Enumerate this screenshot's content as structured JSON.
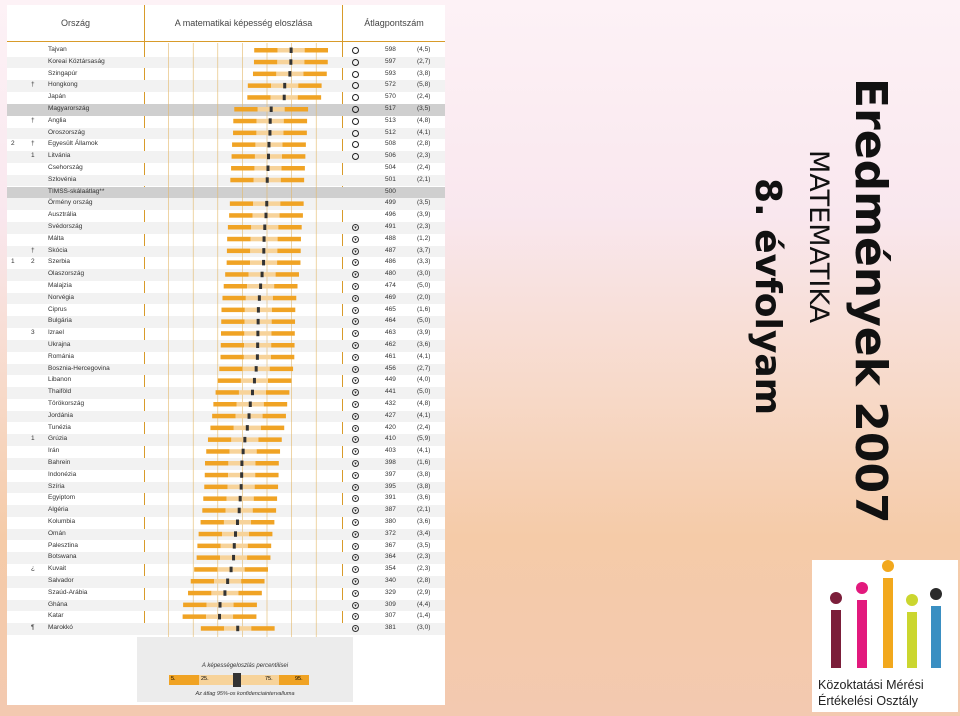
{
  "slide": {
    "title": "Eredmények 2007",
    "subtitle": "MATEMATIKA",
    "grade": "8. évfolyam"
  },
  "figure": {
    "col_country": "Ország",
    "col_distribution": "A matematikai képesség eloszlása",
    "col_average": "Átlagpontszám",
    "axis_ticks": [
      "0",
      "100",
      "200",
      "300",
      "400",
      "500",
      "600",
      "700",
      "800"
    ],
    "legend_title": "A képességeloszlás percentilisei",
    "legend_p5": "5.",
    "legend_p25": "25.",
    "legend_p75": "75.",
    "legend_p95": "95.",
    "legend_ci": "Az átlag 95%-os konfidenciaintervalluma",
    "rows": [
      {
        "m1": "",
        "m2": "",
        "country": "Tajvan",
        "sym": "up",
        "score": "598",
        "se": "(4,5)",
        "mean": 598
      },
      {
        "m1": "",
        "m2": "",
        "country": "Koreai Köztársaság",
        "sym": "up",
        "score": "597",
        "se": "(2,7)",
        "mean": 597
      },
      {
        "m1": "",
        "m2": "",
        "country": "Szingapúr",
        "sym": "up",
        "score": "593",
        "se": "(3,8)",
        "mean": 593
      },
      {
        "m1": "",
        "m2": "†",
        "country": "Hongkong",
        "sym": "up",
        "score": "572",
        "se": "(5,8)",
        "mean": 572
      },
      {
        "m1": "",
        "m2": "",
        "country": "Japán",
        "sym": "up",
        "score": "570",
        "se": "(2,4)",
        "mean": 570
      },
      {
        "m1": "",
        "m2": "",
        "country": "Magyarország",
        "sym": "up",
        "score": "517",
        "se": "(3,5)",
        "mean": 517,
        "hl": true
      },
      {
        "m1": "",
        "m2": "†",
        "country": "Anglia",
        "sym": "up",
        "score": "513",
        "se": "(4,8)",
        "mean": 513
      },
      {
        "m1": "",
        "m2": "",
        "country": "Oroszország",
        "sym": "up",
        "score": "512",
        "se": "(4,1)",
        "mean": 512
      },
      {
        "m1": "2",
        "m2": "†",
        "country": "Egyesült Államok",
        "sym": "up",
        "score": "508",
        "se": "(2,8)",
        "mean": 508
      },
      {
        "m1": "",
        "m2": "1",
        "country": "Litvánia",
        "sym": "up",
        "score": "506",
        "se": "(2,3)",
        "mean": 506
      },
      {
        "m1": "",
        "m2": "",
        "country": "Csehország",
        "sym": "",
        "score": "504",
        "se": "(2,4)",
        "mean": 504
      },
      {
        "m1": "",
        "m2": "",
        "country": "Szlovénia",
        "sym": "",
        "score": "501",
        "se": "(2,1)",
        "mean": 501
      },
      {
        "m1": "",
        "m2": "",
        "country": "TIMSS-skálaátlag**",
        "sym": "",
        "score": "500",
        "se": "",
        "mean": 500,
        "hl": true,
        "nobar": true
      },
      {
        "m1": "",
        "m2": "",
        "country": "Örmény ország",
        "sym": "",
        "score": "499",
        "se": "(3,5)",
        "mean": 499
      },
      {
        "m1": "",
        "m2": "",
        "country": "Ausztrália",
        "sym": "",
        "score": "496",
        "se": "(3,9)",
        "mean": 496
      },
      {
        "m1": "",
        "m2": "",
        "country": "Svédország",
        "sym": "down",
        "score": "491",
        "se": "(2,3)",
        "mean": 491
      },
      {
        "m1": "",
        "m2": "",
        "country": "Málta",
        "sym": "down",
        "score": "488",
        "se": "(1,2)",
        "mean": 488
      },
      {
        "m1": "",
        "m2": "†",
        "country": "Skócia",
        "sym": "down",
        "score": "487",
        "se": "(3,7)",
        "mean": 487
      },
      {
        "m1": "1",
        "m2": "2",
        "country": "Szerbia",
        "sym": "down",
        "score": "486",
        "se": "(3,3)",
        "mean": 486
      },
      {
        "m1": "",
        "m2": "",
        "country": "Olaszország",
        "sym": "down",
        "score": "480",
        "se": "(3,0)",
        "mean": 480
      },
      {
        "m1": "",
        "m2": "",
        "country": "Malajzia",
        "sym": "down",
        "score": "474",
        "se": "(5,0)",
        "mean": 474
      },
      {
        "m1": "",
        "m2": "",
        "country": "Norvégia",
        "sym": "down",
        "score": "469",
        "se": "(2,0)",
        "mean": 469
      },
      {
        "m1": "",
        "m2": "",
        "country": "Ciprus",
        "sym": "down",
        "score": "465",
        "se": "(1,6)",
        "mean": 465
      },
      {
        "m1": "",
        "m2": "",
        "country": "Bulgária",
        "sym": "down",
        "score": "464",
        "se": "(5,0)",
        "mean": 464
      },
      {
        "m1": "",
        "m2": "3",
        "country": "Izrael",
        "sym": "down",
        "score": "463",
        "se": "(3,9)",
        "mean": 463
      },
      {
        "m1": "",
        "m2": "",
        "country": "Ukrajna",
        "sym": "down",
        "score": "462",
        "se": "(3,6)",
        "mean": 462
      },
      {
        "m1": "",
        "m2": "",
        "country": "Románia",
        "sym": "down",
        "score": "461",
        "se": "(4,1)",
        "mean": 461
      },
      {
        "m1": "",
        "m2": "",
        "country": "Bosznia-Hercegovina",
        "sym": "down",
        "score": "456",
        "se": "(2,7)",
        "mean": 456
      },
      {
        "m1": "",
        "m2": "",
        "country": "Libanon",
        "sym": "down",
        "score": "449",
        "se": "(4,0)",
        "mean": 449
      },
      {
        "m1": "",
        "m2": "",
        "country": "Thaiföld",
        "sym": "down",
        "score": "441",
        "se": "(5,0)",
        "mean": 441
      },
      {
        "m1": "",
        "m2": "",
        "country": "Törökország",
        "sym": "down",
        "score": "432",
        "se": "(4,8)",
        "mean": 432
      },
      {
        "m1": "",
        "m2": "",
        "country": "Jordánia",
        "sym": "down",
        "score": "427",
        "se": "(4,1)",
        "mean": 427
      },
      {
        "m1": "",
        "m2": "",
        "country": "Tunézia",
        "sym": "down",
        "score": "420",
        "se": "(2,4)",
        "mean": 420
      },
      {
        "m1": "",
        "m2": "1",
        "country": "Grúzia",
        "sym": "down",
        "score": "410",
        "se": "(5,9)",
        "mean": 410
      },
      {
        "m1": "",
        "m2": "",
        "country": "Irán",
        "sym": "down",
        "score": "403",
        "se": "(4,1)",
        "mean": 403
      },
      {
        "m1": "",
        "m2": "",
        "country": "Bahrein",
        "sym": "down",
        "score": "398",
        "se": "(1,6)",
        "mean": 398
      },
      {
        "m1": "",
        "m2": "",
        "country": "Indonézia",
        "sym": "down",
        "score": "397",
        "se": "(3,8)",
        "mean": 397
      },
      {
        "m1": "",
        "m2": "",
        "country": "Szíria",
        "sym": "down",
        "score": "395",
        "se": "(3,8)",
        "mean": 395
      },
      {
        "m1": "",
        "m2": "",
        "country": "Egyiptom",
        "sym": "down",
        "score": "391",
        "se": "(3,6)",
        "mean": 391
      },
      {
        "m1": "",
        "m2": "",
        "country": "Algéria",
        "sym": "down",
        "score": "387",
        "se": "(2,1)",
        "mean": 387
      },
      {
        "m1": "",
        "m2": "",
        "country": "Kolumbia",
        "sym": "down",
        "score": "380",
        "se": "(3,6)",
        "mean": 380
      },
      {
        "m1": "",
        "m2": "",
        "country": "Omán",
        "sym": "down",
        "score": "372",
        "se": "(3,4)",
        "mean": 372
      },
      {
        "m1": "",
        "m2": "",
        "country": "Palesztina",
        "sym": "down",
        "score": "367",
        "se": "(3,5)",
        "mean": 367
      },
      {
        "m1": "",
        "m2": "",
        "country": "Botswana",
        "sym": "down",
        "score": "364",
        "se": "(2,3)",
        "mean": 364
      },
      {
        "m1": "",
        "m2": "¿",
        "country": "Kuvait",
        "sym": "down",
        "score": "354",
        "se": "(2,3)",
        "mean": 354
      },
      {
        "m1": "",
        "m2": "",
        "country": "Salvador",
        "sym": "down",
        "score": "340",
        "se": "(2,8)",
        "mean": 340
      },
      {
        "m1": "",
        "m2": "",
        "country": "Szaúd-Arábia",
        "sym": "down",
        "score": "329",
        "se": "(2,9)",
        "mean": 329
      },
      {
        "m1": "",
        "m2": "",
        "country": "Ghána",
        "sym": "down",
        "score": "309",
        "se": "(4,4)",
        "mean": 309
      },
      {
        "m1": "",
        "m2": "",
        "country": "Katar",
        "sym": "down",
        "score": "307",
        "se": "(1,4)",
        "mean": 307
      },
      {
        "m1": "",
        "m2": "¶",
        "country": "Marokkó",
        "sym": "down",
        "score": "381",
        "se": "(3,0)",
        "mean": 381
      }
    ]
  },
  "logo": {
    "line1": "Közoktatási Mérési",
    "line2": "Értékelési Osztály",
    "colors": [
      "#7b1e3a",
      "#e2197d",
      "#f2a81d",
      "#cbd62f",
      "#3a8fc2",
      "#2b2b2b"
    ]
  },
  "colors": {
    "bar": "#f0a324",
    "bar_light": "#f7d39a",
    "ci": "#333333",
    "axis": "#d89b2a"
  }
}
